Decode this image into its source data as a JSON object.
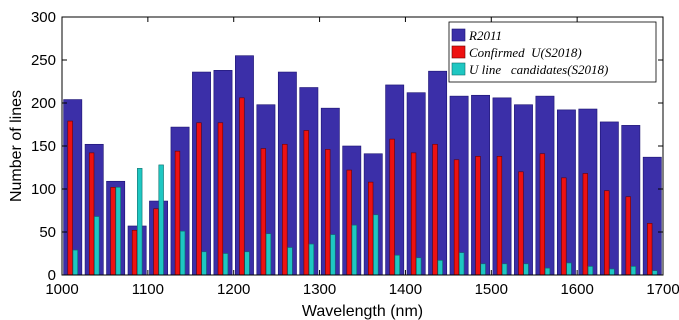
{
  "chart_data": {
    "type": "bar",
    "xlabel": "Wavelength (nm)",
    "ylabel": "Number of lines",
    "xlim": [
      1000,
      1700
    ],
    "ylim": [
      0,
      300
    ],
    "x_ticks": [
      1000,
      1100,
      1200,
      1300,
      1400,
      1500,
      1600,
      1700
    ],
    "y_ticks": [
      0,
      50,
      100,
      150,
      200,
      250,
      300
    ],
    "grid": false,
    "legend_position": "top-right",
    "categories": [
      1012.5,
      1037.5,
      1062.5,
      1087.5,
      1112.5,
      1137.5,
      1162.5,
      1187.5,
      1212.5,
      1237.5,
      1262.5,
      1287.5,
      1312.5,
      1337.5,
      1362.5,
      1387.5,
      1412.5,
      1437.5,
      1462.5,
      1487.5,
      1512.5,
      1537.5,
      1562.5,
      1587.5,
      1612.5,
      1637.5,
      1662.5,
      1687.5
    ],
    "series": [
      {
        "name": "R2011",
        "color": "#3b2fa8",
        "values": [
          204,
          152,
          109,
          57,
          86,
          172,
          236,
          238,
          255,
          198,
          236,
          218,
          194,
          150,
          141,
          221,
          212,
          237,
          208,
          209,
          206,
          198,
          208,
          192,
          193,
          178,
          174,
          137
        ]
      },
      {
        "name": "Confirmed  U(S2018)",
        "color": "#ee1111",
        "values": [
          179,
          142,
          102,
          52,
          77,
          144,
          177,
          177,
          206,
          147,
          152,
          168,
          146,
          122,
          108,
          158,
          142,
          152,
          134,
          138,
          138,
          120,
          141,
          113,
          118,
          98,
          91,
          60
        ]
      },
      {
        "name": "U line   candidates(S2018)",
        "color": "#1ec7c2",
        "values": [
          29,
          68,
          102,
          124,
          128,
          51,
          27,
          25,
          27,
          48,
          32,
          36,
          47,
          58,
          70,
          23,
          20,
          17,
          26,
          13,
          13,
          13,
          8,
          14,
          10,
          7,
          10,
          5
        ]
      }
    ]
  }
}
